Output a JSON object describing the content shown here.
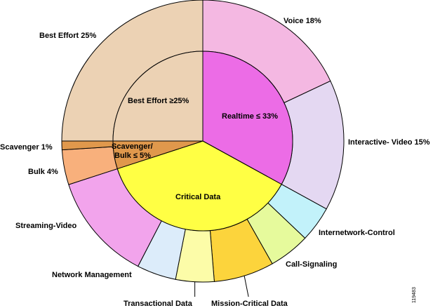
{
  "chart_data": {
    "type": "pie",
    "figure_id": "119483",
    "inner_ring": [
      {
        "label": "Realtime ≤ 33%",
        "value": 33,
        "color": "#ec6ce6"
      },
      {
        "label": "Critical Data",
        "value": 37,
        "color": "#ffff44"
      },
      {
        "label": "Scavenger/ Bulk ≤ 5%",
        "value": 5,
        "color": "#e0984c"
      },
      {
        "label": "Best Effort ≥25%",
        "value": 25,
        "color": "#ecd2b4"
      }
    ],
    "outer_ring": [
      {
        "label": "Voice 18%",
        "value": 18,
        "color": "#f4b8e2"
      },
      {
        "label": "Interactive- Video  15%",
        "value": 15,
        "color": "#e4d8f2"
      },
      {
        "label": "Internetwork-Control",
        "value": 4.1,
        "color": "#c2f2fa"
      },
      {
        "label": "Call-Signaling",
        "value": 4.7,
        "color": "#e6fa9c"
      },
      {
        "label": "Mission-Critical Data",
        "value": 6.9,
        "color": "#fcd43c"
      },
      {
        "label": "Transactional Data",
        "value": 4.4,
        "color": "#fcfca8"
      },
      {
        "label": "Network Management",
        "value": 4.5,
        "color": "#dcecfa"
      },
      {
        "label": "Streaming-Video",
        "value": 12.4,
        "color": "#f2a4ec"
      },
      {
        "label": "Bulk 4%",
        "value": 4,
        "color": "#f8b07c"
      },
      {
        "label": "Scavenger 1%",
        "value": 1,
        "color": "#e0984c"
      },
      {
        "label": "Best Effort 25%",
        "value": 25,
        "color": "#ecd2b4"
      }
    ]
  }
}
